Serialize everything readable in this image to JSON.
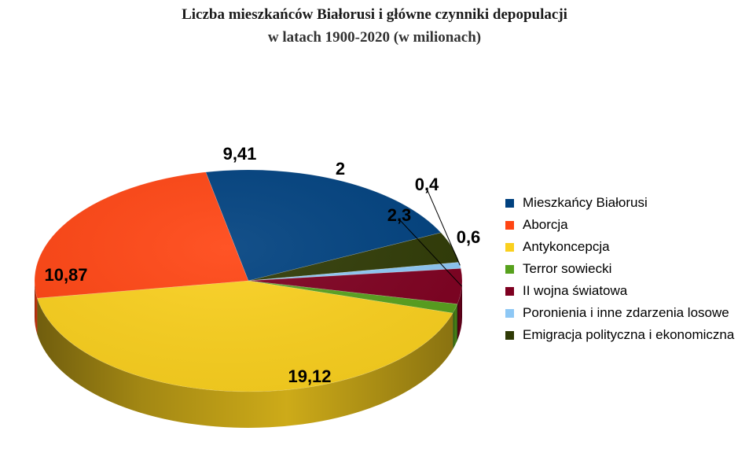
{
  "title": "Liczba mieszkańców Białorusi i główne czynniki depopulacji",
  "subtitle": "w latach 1900-2020 (w milionach)",
  "chart_data": {
    "type": "pie",
    "title": "Liczba mieszkańców Białorusi i główne czynniki depopulacji",
    "subtitle": "w latach 1900-2020 (w milionach)",
    "legend_position": "right",
    "slices": [
      {
        "label": "Mieszkańcy Białorusi",
        "value": 9.41,
        "display": "9,41",
        "color": "#00417f"
      },
      {
        "label": "Emigracja polityczna i ekonomiczna",
        "value": 2,
        "display": "2",
        "color": "#2f3a05"
      },
      {
        "label": "Poronienia i inne zdarzenia losowe",
        "value": 0.4,
        "display": "0,4",
        "color": "#8ec8f5"
      },
      {
        "label": "II wojna światowa",
        "value": 2.3,
        "display": "2,3",
        "color": "#7e0020"
      },
      {
        "label": "Terror sowiecki",
        "value": 0.6,
        "display": "0,6",
        "color": "#57a11d"
      },
      {
        "label": "Antykoncepcja",
        "value": 19.12,
        "display": "19,12",
        "color": "#fad01e"
      },
      {
        "label": "Aborcja",
        "value": 10.87,
        "display": "10,87",
        "color": "#ff4513"
      }
    ],
    "legend": [
      {
        "label": "Mieszkańcy Białorusi",
        "color": "#00417f"
      },
      {
        "label": "Aborcja",
        "color": "#ff4513"
      },
      {
        "label": "Antykoncepcja",
        "color": "#fad01e"
      },
      {
        "label": "Terror sowiecki",
        "color": "#57a11d"
      },
      {
        "label": "II wojna światowa",
        "color": "#7e0020"
      },
      {
        "label": "Poronienia i inne zdarzenia losowe",
        "color": "#8ec8f5"
      },
      {
        "label": "Emigracja polityczna i ekonomiczna",
        "color": "#2f3a05"
      }
    ]
  }
}
